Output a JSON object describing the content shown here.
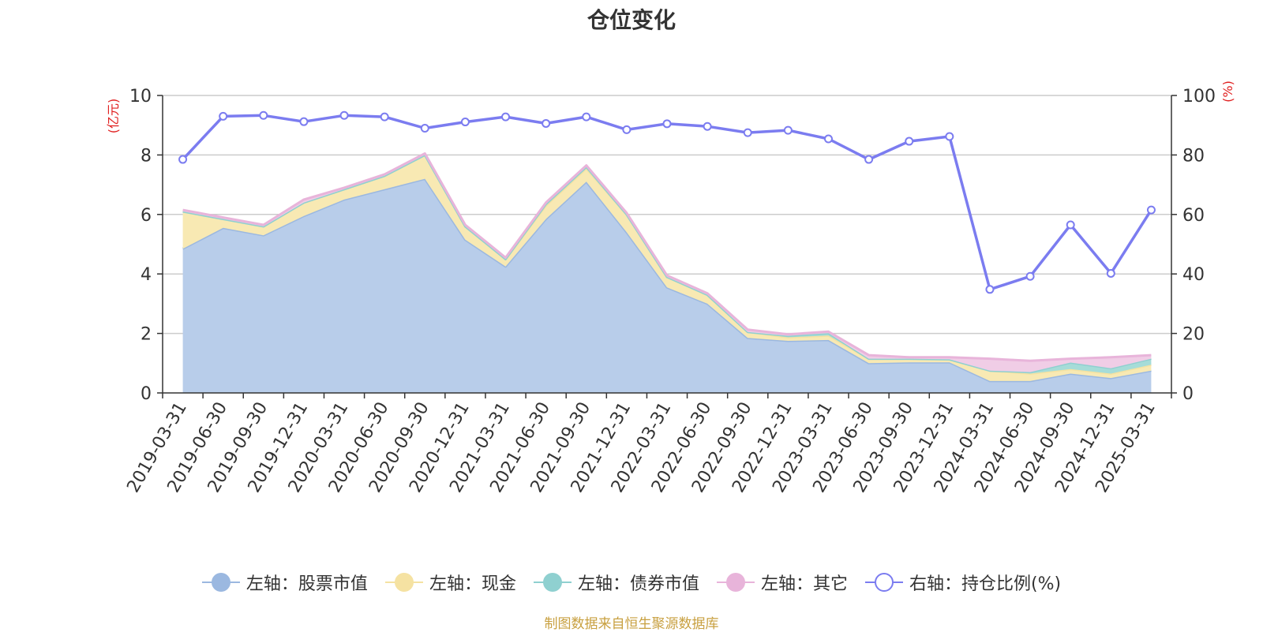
{
  "chart_data": {
    "type": "area",
    "title": "仓位变化",
    "left_axis_unit": "(亿元)",
    "right_axis_unit": "(%)",
    "ylim_left": [
      0,
      10
    ],
    "ylim_right": [
      0,
      100
    ],
    "left_ticks": [
      "0",
      "2",
      "4",
      "6",
      "8",
      "10"
    ],
    "right_ticks": [
      "0",
      "20",
      "40",
      "60",
      "80",
      "100"
    ],
    "grid": true,
    "legend_position": "bottom",
    "categories": [
      "2019-03-31",
      "2019-06-30",
      "2019-09-30",
      "2019-12-31",
      "2020-03-31",
      "2020-06-30",
      "2020-09-30",
      "2020-12-31",
      "2021-03-31",
      "2021-06-30",
      "2021-09-30",
      "2021-12-31",
      "2022-03-31",
      "2022-06-30",
      "2022-09-30",
      "2022-12-31",
      "2023-03-31",
      "2023-06-30",
      "2023-09-30",
      "2023-12-31",
      "2024-03-31",
      "2024-06-30",
      "2024-09-30",
      "2024-12-31",
      "2025-03-31"
    ],
    "series": [
      {
        "name": "左轴：股票市值",
        "axis": "left",
        "kind": "stacked-area",
        "color": "#9bb8e0",
        "fill": "#b8cdea",
        "values": [
          4.85,
          5.55,
          5.3,
          5.95,
          6.5,
          6.85,
          7.2,
          5.15,
          4.25,
          5.85,
          7.1,
          5.4,
          3.55,
          3.0,
          1.85,
          1.75,
          1.78,
          1.0,
          1.03,
          1.03,
          0.4,
          0.4,
          0.65,
          0.5,
          0.75
        ]
      },
      {
        "name": "左轴：现金",
        "axis": "left",
        "kind": "stacked-area",
        "color": "#f5e2a2",
        "fill": "#f8e9b3",
        "values": [
          1.25,
          0.3,
          0.3,
          0.45,
          0.35,
          0.45,
          0.8,
          0.45,
          0.25,
          0.45,
          0.45,
          0.6,
          0.35,
          0.3,
          0.2,
          0.12,
          0.15,
          0.15,
          0.12,
          0.1,
          0.35,
          0.25,
          0.15,
          0.15,
          0.2
        ]
      },
      {
        "name": "左轴：债券市值",
        "axis": "left",
        "kind": "stacked-area",
        "color": "#8fd0d0",
        "fill": "#a6dcd8",
        "values": [
          0,
          0,
          0,
          0,
          0,
          0,
          0,
          0,
          0,
          0.05,
          0.05,
          0,
          0,
          0,
          0,
          0.05,
          0.08,
          0,
          0,
          0,
          0,
          0.05,
          0.22,
          0.18,
          0.2
        ]
      },
      {
        "name": "左轴：其它",
        "axis": "left",
        "kind": "stacked-area",
        "color": "#e8b4da",
        "fill": "#f0cde6",
        "values": [
          0.05,
          0.05,
          0.05,
          0.1,
          0.05,
          0.05,
          0.05,
          0.05,
          0.05,
          0.05,
          0.05,
          0.05,
          0.05,
          0.05,
          0.08,
          0.05,
          0.05,
          0.12,
          0.05,
          0.07,
          0.4,
          0.38,
          0.13,
          0.37,
          0.12
        ]
      },
      {
        "name": "右轴：持仓比例(%)",
        "axis": "right",
        "kind": "line",
        "color": "#7b7cf0",
        "values": [
          78.5,
          93,
          93.3,
          91.2,
          93.3,
          92.8,
          89,
          91.1,
          92.8,
          90.6,
          92.8,
          88.5,
          90.5,
          89.6,
          87.5,
          88.3,
          85.4,
          78.5,
          84.6,
          86.2,
          34.8,
          39.2,
          56.5,
          40.2,
          61.5
        ]
      }
    ]
  },
  "footer": {
    "source_note": "制图数据来自恒生聚源数据库"
  }
}
